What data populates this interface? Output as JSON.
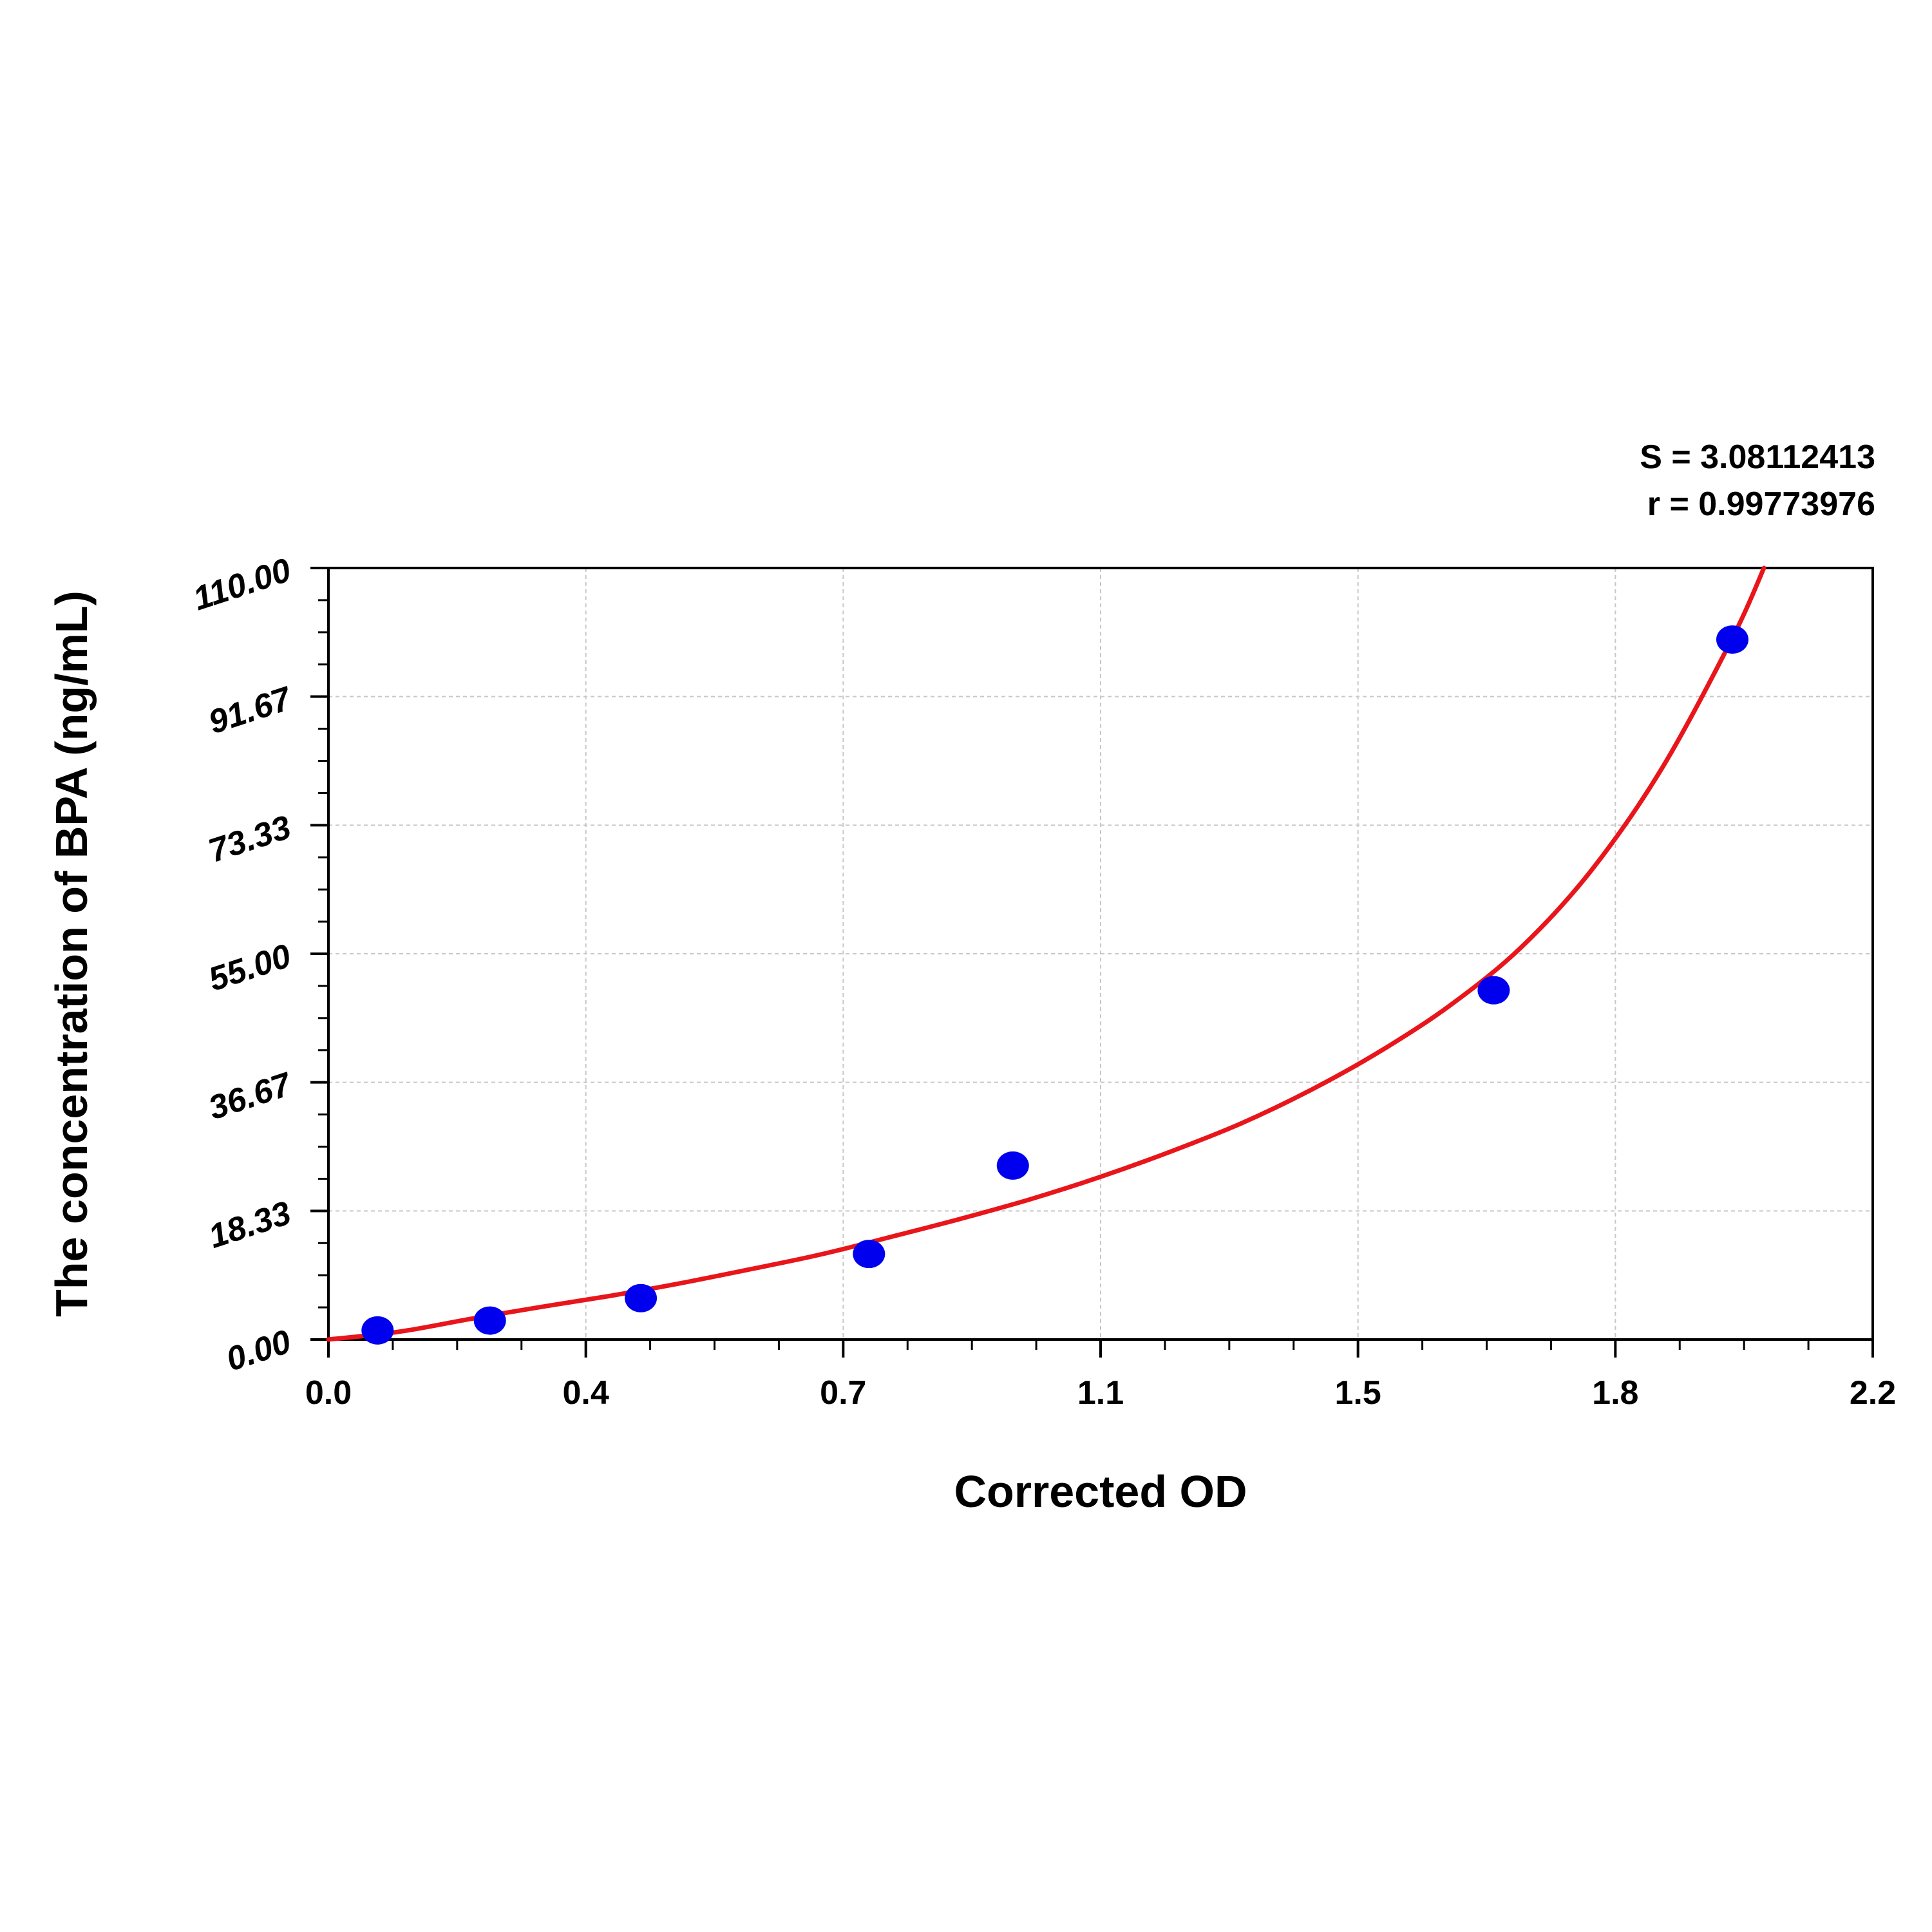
{
  "chart_data": {
    "type": "scatter",
    "title": "",
    "xlabel": "Corrected OD",
    "ylabel": "The concentration of BPA (ng/mL)",
    "xlim": [
      0.0,
      2.2
    ],
    "ylim": [
      0.0,
      110.0
    ],
    "x_ticks": [
      "0.0",
      "0.4",
      "0.7",
      "1.1",
      "1.5",
      "1.8",
      "2.2"
    ],
    "y_ticks": [
      "0.00",
      "18.33",
      "36.67",
      "55.00",
      "73.33",
      "91.67",
      "110.00"
    ],
    "grid": true,
    "series": [
      {
        "points": [
          {
            "x": 0.07,
            "y": 1.3
          },
          {
            "x": 0.23,
            "y": 2.7
          },
          {
            "x": 0.445,
            "y": 5.9
          },
          {
            "x": 0.77,
            "y": 12.2
          },
          {
            "x": 0.975,
            "y": 24.8
          },
          {
            "x": 1.66,
            "y": 49.8
          },
          {
            "x": 2.0,
            "y": 99.8
          }
        ],
        "color": "#0000ee"
      },
      {
        "fit_curve": [
          {
            "x": 0.0,
            "y": 0.0
          },
          {
            "x": 0.1,
            "y": 1.1
          },
          {
            "x": 0.2,
            "y": 2.9
          },
          {
            "x": 0.3,
            "y": 4.6
          },
          {
            "x": 0.4,
            "y": 6.2
          },
          {
            "x": 0.5,
            "y": 8.0
          },
          {
            "x": 0.6,
            "y": 10.0
          },
          {
            "x": 0.7,
            "y": 12.1
          },
          {
            "x": 0.8,
            "y": 14.6
          },
          {
            "x": 0.9,
            "y": 17.2
          },
          {
            "x": 1.0,
            "y": 20.0
          },
          {
            "x": 1.1,
            "y": 23.2
          },
          {
            "x": 1.2,
            "y": 26.8
          },
          {
            "x": 1.3,
            "y": 30.8
          },
          {
            "x": 1.4,
            "y": 35.6
          },
          {
            "x": 1.5,
            "y": 41.2
          },
          {
            "x": 1.6,
            "y": 47.8
          },
          {
            "x": 1.7,
            "y": 56.0
          },
          {
            "x": 1.8,
            "y": 67.0
          },
          {
            "x": 1.9,
            "y": 81.5
          },
          {
            "x": 2.0,
            "y": 100.0
          },
          {
            "x": 2.045,
            "y": 110.0
          }
        ],
        "color": "#e8161b"
      }
    ],
    "annotations": [
      "S = 3.08112413",
      "r = 0.99773976"
    ]
  },
  "colors": {
    "points": "#0000ee",
    "curve": "#e8161b",
    "grid": "#c8c8c8",
    "axis": "#000000"
  }
}
